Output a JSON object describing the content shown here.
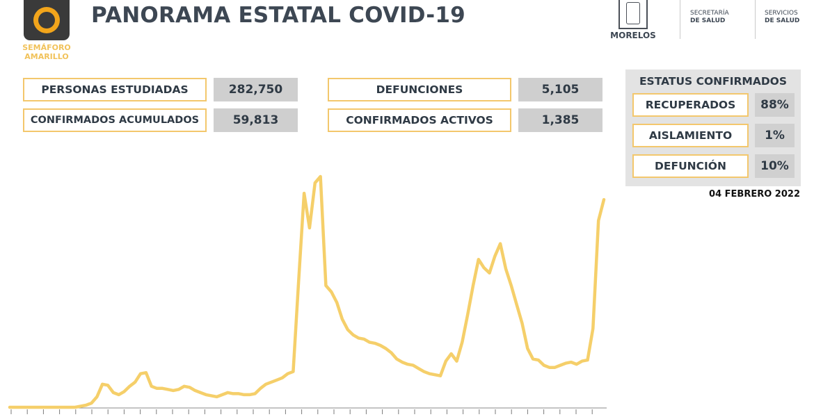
{
  "header": {
    "title": "PANORAMA ESTATAL COVID-19",
    "semaforo_label_line1": "SEMÁFORO",
    "semaforo_label_line2": "AMARILLO",
    "semaforo_color": "#f2a51b",
    "state_name": "MORELOS",
    "logo1_line1": "SECRETARÍA",
    "logo1_line2": "DE SALUD",
    "logo2_line1": "SERVICIOS",
    "logo2_line2": "DE SALUD"
  },
  "stats": {
    "personas_estudiadas_label": "PERSONAS ESTUDIADAS",
    "personas_estudiadas_value": "282,750",
    "confirmados_acumulados_label": "CONFIRMADOS ACUMULADOS",
    "confirmados_acumulados_value": "59,813",
    "defunciones_label": "DEFUNCIONES",
    "defunciones_value": "5,105",
    "confirmados_activos_label": "CONFIRMADOS ACTIVOS",
    "confirmados_activos_value": "1,385"
  },
  "estatus": {
    "title": "ESTATUS CONFIRMADOS",
    "recuperados_label": "RECUPERADOS",
    "recuperados_value": "88%",
    "aislamiento_label": "AISLAMIENTO",
    "aislamiento_value": "1%",
    "defuncion_label": "DEFUNCIÓN",
    "defuncion_value": "10%"
  },
  "date": "04 FEBRERO 2022",
  "colors": {
    "accent_border": "#f3c76c",
    "line": "#f5cf6a",
    "value_bg": "#cfcfcf"
  },
  "chart_data": {
    "type": "line",
    "title": "",
    "xlabel": "",
    "ylabel": "",
    "series": [
      {
        "values": [
          0,
          0,
          0,
          0,
          0,
          0,
          0,
          0,
          0,
          0,
          0,
          0,
          0,
          1,
          2,
          4,
          10,
          22,
          21,
          14,
          12,
          15,
          20,
          24,
          32,
          33,
          20,
          18,
          18,
          17,
          16,
          17,
          20,
          19,
          16,
          14,
          12,
          11,
          10,
          12,
          14,
          13,
          13,
          12,
          12,
          13,
          18,
          22,
          24,
          26,
          28,
          32,
          34,
          120,
          204,
          171,
          214,
          220,
          116,
          110,
          100,
          84,
          74,
          69,
          66,
          65,
          62,
          61,
          59,
          56,
          52,
          46,
          43,
          41,
          40,
          37,
          34,
          32,
          31,
          30,
          44,
          51,
          44,
          62,
          88,
          116,
          141,
          133,
          128,
          144,
          156,
          132,
          116,
          98,
          80,
          56,
          46,
          45,
          40,
          38,
          38,
          40,
          42,
          43,
          41,
          44,
          45,
          75,
          178,
          198
        ]
      }
    ]
  }
}
